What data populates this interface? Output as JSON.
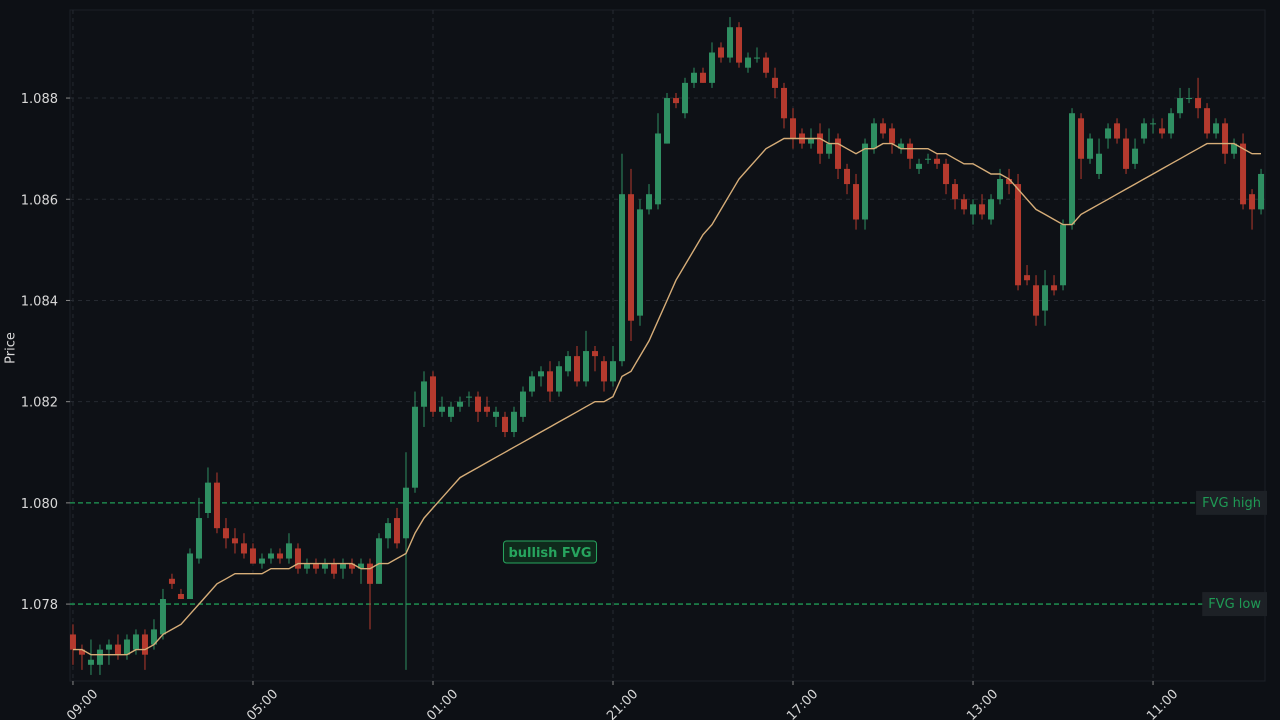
{
  "chart_data": {
    "type": "candlestick",
    "ylabel": "Price",
    "grid": true,
    "xlim": [
      -0.33,
      132.44
    ],
    "xticks": [
      {
        "value": 0,
        "label": "09:00"
      },
      {
        "value": 20,
        "label": "05:00"
      },
      {
        "value": 40,
        "label": "01:00"
      },
      {
        "value": 60,
        "label": "21:00"
      },
      {
        "value": 80,
        "label": "17:00"
      },
      {
        "value": 100,
        "label": "13:00"
      },
      {
        "value": 120,
        "label": "11:00"
      }
    ],
    "ylim": [
      1.07648,
      1.08974
    ],
    "yticks": [
      1.078,
      {
        "value": 1.08,
        "label": "1.080"
      },
      1.082,
      1.084,
      1.086,
      1.088
    ],
    "up_color": "#2f8f62",
    "down_color": "#b53a2e",
    "ohlc": [
      [
        1.0774,
        1.0776,
        1.0768,
        1.0771
      ],
      [
        1.0771,
        1.0772,
        1.0767,
        1.077
      ],
      [
        1.0768,
        1.0773,
        1.0766,
        1.0769
      ],
      [
        1.0768,
        1.0772,
        1.0766,
        1.0771
      ],
      [
        1.0771,
        1.0773,
        1.0768,
        1.0772
      ],
      [
        1.0772,
        1.0774,
        1.0769,
        1.077
      ],
      [
        1.077,
        1.0774,
        1.0769,
        1.0773
      ],
      [
        1.0771,
        1.0775,
        1.077,
        1.0774
      ],
      [
        1.0774,
        1.0775,
        1.0767,
        1.077
      ],
      [
        1.0772,
        1.0777,
        1.0771,
        1.0775
      ],
      [
        1.0774,
        1.0783,
        1.0773,
        1.0781
      ],
      [
        1.0785,
        1.0786,
        1.0783,
        1.0784
      ],
      [
        1.0782,
        1.0783,
        1.0781,
        1.0781
      ],
      [
        1.0781,
        1.0791,
        1.0781,
        1.079
      ],
      [
        1.0789,
        1.0801,
        1.0788,
        1.0797
      ],
      [
        1.0798,
        1.0807,
        1.0797,
        1.0804
      ],
      [
        1.0804,
        1.0806,
        1.0794,
        1.0795
      ],
      [
        1.0795,
        1.0797,
        1.0791,
        1.0793
      ],
      [
        1.0793,
        1.0795,
        1.079,
        1.0792
      ],
      [
        1.0792,
        1.0794,
        1.0789,
        1.079
      ],
      [
        1.0791,
        1.0792,
        1.0788,
        1.0788
      ],
      [
        1.0788,
        1.079,
        1.0787,
        1.0789
      ],
      [
        1.0789,
        1.0791,
        1.0788,
        1.079
      ],
      [
        1.079,
        1.0791,
        1.0788,
        1.0789
      ],
      [
        1.0789,
        1.0794,
        1.0788,
        1.0792
      ],
      [
        1.0791,
        1.0792,
        1.0786,
        1.0787
      ],
      [
        1.0787,
        1.0789,
        1.0786,
        1.0788
      ],
      [
        1.0788,
        1.0789,
        1.0786,
        1.0787
      ],
      [
        1.0787,
        1.0789,
        1.0786,
        1.0788
      ],
      [
        1.0788,
        1.0789,
        1.0785,
        1.0786
      ],
      [
        1.0787,
        1.0789,
        1.0785,
        1.0788
      ],
      [
        1.0788,
        1.0789,
        1.0786,
        1.0787
      ],
      [
        1.0787,
        1.0789,
        1.0784,
        1.0788
      ],
      [
        1.0788,
        1.0789,
        1.0775,
        1.0784
      ],
      [
        1.0784,
        1.0794,
        1.0784,
        1.0793
      ],
      [
        1.0793,
        1.0797,
        1.0791,
        1.0796
      ],
      [
        1.0797,
        1.0799,
        1.0791,
        1.0792
      ],
      [
        1.0793,
        1.081,
        1.0767,
        1.0803
      ],
      [
        1.0803,
        1.0822,
        1.0802,
        1.0819
      ],
      [
        1.0819,
        1.0826,
        1.0815,
        1.0824
      ],
      [
        1.0825,
        1.0826,
        1.0817,
        1.0818
      ],
      [
        1.0818,
        1.0821,
        1.0817,
        1.0819
      ],
      [
        1.0817,
        1.082,
        1.0816,
        1.0819
      ],
      [
        1.0819,
        1.0821,
        1.0818,
        1.082
      ],
      [
        1.0821,
        1.0822,
        1.0819,
        1.0821
      ],
      [
        1.0821,
        1.0822,
        1.0816,
        1.0818
      ],
      [
        1.0819,
        1.0821,
        1.0817,
        1.0818
      ],
      [
        1.0817,
        1.0819,
        1.0815,
        1.0818
      ],
      [
        1.0817,
        1.0818,
        1.0813,
        1.0814
      ],
      [
        1.0814,
        1.0819,
        1.0813,
        1.0818
      ],
      [
        1.0817,
        1.0823,
        1.0816,
        1.0822
      ],
      [
        1.0822,
        1.0826,
        1.0821,
        1.0825
      ],
      [
        1.0825,
        1.0827,
        1.0823,
        1.0826
      ],
      [
        1.0826,
        1.0828,
        1.082,
        1.0822
      ],
      [
        1.0822,
        1.0828,
        1.0821,
        1.0827
      ],
      [
        1.0826,
        1.083,
        1.0825,
        1.0829
      ],
      [
        1.0829,
        1.0831,
        1.0823,
        1.0824
      ],
      [
        1.0824,
        1.0834,
        1.0823,
        1.083
      ],
      [
        1.083,
        1.0831,
        1.0826,
        1.0829
      ],
      [
        1.0828,
        1.0829,
        1.0822,
        1.0824
      ],
      [
        1.0824,
        1.0831,
        1.0823,
        1.0828
      ],
      [
        1.0828,
        1.0869,
        1.0827,
        1.0861
      ],
      [
        1.0861,
        1.0866,
        1.0832,
        1.0836
      ],
      [
        1.0837,
        1.086,
        1.0835,
        1.0858
      ],
      [
        1.0858,
        1.0863,
        1.0857,
        1.0861
      ],
      [
        1.0859,
        1.0877,
        1.0858,
        1.0873
      ],
      [
        1.0871,
        1.0881,
        1.0871,
        1.088
      ],
      [
        1.088,
        1.0881,
        1.0878,
        1.0879
      ],
      [
        1.0877,
        1.0884,
        1.0876,
        1.0883
      ],
      [
        1.0883,
        1.0886,
        1.0882,
        1.0885
      ],
      [
        1.0885,
        1.0886,
        1.0883,
        1.0883
      ],
      [
        1.0883,
        1.0891,
        1.0882,
        1.0889
      ],
      [
        1.089,
        1.0891,
        1.0887,
        1.0888
      ],
      [
        1.0888,
        1.0896,
        1.0887,
        1.0894
      ],
      [
        1.0894,
        1.0895,
        1.0886,
        1.0887
      ],
      [
        1.0886,
        1.0889,
        1.0885,
        1.0888
      ],
      [
        1.0888,
        1.089,
        1.0887,
        1.0888
      ],
      [
        1.0888,
        1.0889,
        1.0884,
        1.0885
      ],
      [
        1.0884,
        1.0886,
        1.088,
        1.0882
      ],
      [
        1.0882,
        1.0883,
        1.0874,
        1.0876
      ],
      [
        1.0876,
        1.0878,
        1.087,
        1.0872
      ],
      [
        1.0873,
        1.0874,
        1.087,
        1.0871
      ],
      [
        1.0871,
        1.0874,
        1.087,
        1.0872
      ],
      [
        1.0873,
        1.0875,
        1.0867,
        1.0869
      ],
      [
        1.0869,
        1.0874,
        1.0868,
        1.0871
      ],
      [
        1.0872,
        1.0873,
        1.0864,
        1.0866
      ],
      [
        1.0866,
        1.0867,
        1.0861,
        1.0863
      ],
      [
        1.0863,
        1.0865,
        1.0854,
        1.0856
      ],
      [
        1.0856,
        1.0872,
        1.0854,
        1.0871
      ],
      [
        1.087,
        1.0876,
        1.0869,
        1.0875
      ],
      [
        1.0875,
        1.0876,
        1.0872,
        1.0873
      ],
      [
        1.0874,
        1.0875,
        1.0869,
        1.0871
      ],
      [
        1.087,
        1.0872,
        1.0869,
        1.0871
      ],
      [
        1.0871,
        1.0872,
        1.0866,
        1.0868
      ],
      [
        1.0866,
        1.0868,
        1.0865,
        1.0867
      ],
      [
        1.0868,
        1.0869,
        1.0867,
        1.0868
      ],
      [
        1.0868,
        1.0869,
        1.0866,
        1.0867
      ],
      [
        1.0867,
        1.0868,
        1.0861,
        1.0863
      ],
      [
        1.0863,
        1.0864,
        1.0858,
        1.086
      ],
      [
        1.086,
        1.0861,
        1.0857,
        1.0858
      ],
      [
        1.0857,
        1.086,
        1.0855,
        1.0859
      ],
      [
        1.0859,
        1.0861,
        1.0856,
        1.0857
      ],
      [
        1.0856,
        1.0861,
        1.0855,
        1.086
      ],
      [
        1.086,
        1.0866,
        1.0859,
        1.0864
      ],
      [
        1.0864,
        1.0866,
        1.0861,
        1.0863
      ],
      [
        1.0863,
        1.0865,
        1.0842,
        1.0843
      ],
      [
        1.0845,
        1.0847,
        1.0843,
        1.0844
      ],
      [
        1.0843,
        1.0845,
        1.0835,
        1.0837
      ],
      [
        1.0838,
        1.0846,
        1.0835,
        1.0843
      ],
      [
        1.0843,
        1.0845,
        1.0841,
        1.0842
      ],
      [
        1.0843,
        1.0856,
        1.0842,
        1.0855
      ],
      [
        1.0855,
        1.0878,
        1.0854,
        1.0877
      ],
      [
        1.0876,
        1.0877,
        1.0864,
        1.0868
      ],
      [
        1.0868,
        1.0873,
        1.0867,
        1.0872
      ],
      [
        1.0865,
        1.0872,
        1.0864,
        1.0869
      ],
      [
        1.0872,
        1.0875,
        1.087,
        1.0874
      ],
      [
        1.0875,
        1.0876,
        1.0871,
        1.0872
      ],
      [
        1.0872,
        1.0874,
        1.0865,
        1.0866
      ],
      [
        1.0867,
        1.0872,
        1.0866,
        1.087
      ],
      [
        1.0872,
        1.0876,
        1.0871,
        1.0875
      ],
      [
        1.0875,
        1.0876,
        1.0873,
        1.0875
      ],
      [
        1.0874,
        1.0876,
        1.0872,
        1.0873
      ],
      [
        1.0873,
        1.0878,
        1.0872,
        1.0877
      ],
      [
        1.0877,
        1.0882,
        1.0876,
        1.088
      ],
      [
        1.088,
        1.0882,
        1.0879,
        1.088
      ],
      [
        1.088,
        1.0884,
        1.0876,
        1.0878
      ],
      [
        1.0878,
        1.0879,
        1.0872,
        1.0873
      ],
      [
        1.0873,
        1.0876,
        1.0872,
        1.0875
      ],
      [
        1.0875,
        1.0876,
        1.0867,
        1.0869
      ],
      [
        1.0869,
        1.0872,
        1.0868,
        1.0871
      ],
      [
        1.0871,
        1.0873,
        1.0858,
        1.0859
      ],
      [
        1.0861,
        1.0862,
        1.0854,
        1.0858
      ],
      [
        1.0858,
        1.0866,
        1.0857,
        1.0865
      ]
    ],
    "moving_average": {
      "color": "#d6ad78",
      "values": [
        1.0771,
        1.0771,
        1.077,
        1.077,
        1.077,
        1.077,
        1.077,
        1.0771,
        1.0771,
        1.0772,
        1.0774,
        1.0775,
        1.0776,
        1.0778,
        1.078,
        1.0782,
        1.0784,
        1.0785,
        1.0786,
        1.0786,
        1.0786,
        1.0786,
        1.0787,
        1.0787,
        1.0787,
        1.0788,
        1.0788,
        1.0788,
        1.0788,
        1.0788,
        1.0788,
        1.0788,
        1.0787,
        1.0787,
        1.0788,
        1.0788,
        1.0789,
        1.079,
        1.0794,
        1.0797,
        1.0799,
        1.0801,
        1.0803,
        1.0805,
        1.0806,
        1.0807,
        1.0808,
        1.0809,
        1.081,
        1.0811,
        1.0812,
        1.0813,
        1.0814,
        1.0815,
        1.0816,
        1.0817,
        1.0818,
        1.0819,
        1.082,
        1.082,
        1.0821,
        1.0825,
        1.0826,
        1.0829,
        1.0832,
        1.0836,
        1.084,
        1.0844,
        1.0847,
        1.085,
        1.0853,
        1.0855,
        1.0858,
        1.0861,
        1.0864,
        1.0866,
        1.0868,
        1.087,
        1.0871,
        1.0872,
        1.0872,
        1.0872,
        1.0872,
        1.0872,
        1.0871,
        1.0871,
        1.087,
        1.0869,
        1.087,
        1.087,
        1.0871,
        1.0871,
        1.087,
        1.087,
        1.087,
        1.087,
        1.0869,
        1.0869,
        1.0868,
        1.0867,
        1.0867,
        1.0866,
        1.0865,
        1.0865,
        1.0864,
        1.0862,
        1.086,
        1.0858,
        1.0857,
        1.0856,
        1.0855,
        1.0855,
        1.0857,
        1.0858,
        1.0859,
        1.086,
        1.0861,
        1.0862,
        1.0863,
        1.0864,
        1.0865,
        1.0866,
        1.0867,
        1.0868,
        1.0869,
        1.087,
        1.0871,
        1.0871,
        1.0871,
        1.0871,
        1.087,
        1.0869,
        1.0869
      ]
    },
    "hlines": [
      {
        "value": 1.08,
        "label": "FVG high",
        "color": "#1f9a55"
      },
      {
        "value": 1.078,
        "label": "FVG low",
        "color": "#1f9a55"
      }
    ],
    "annotation": {
      "text": "bullish FVG",
      "color": "#27a55e"
    }
  }
}
